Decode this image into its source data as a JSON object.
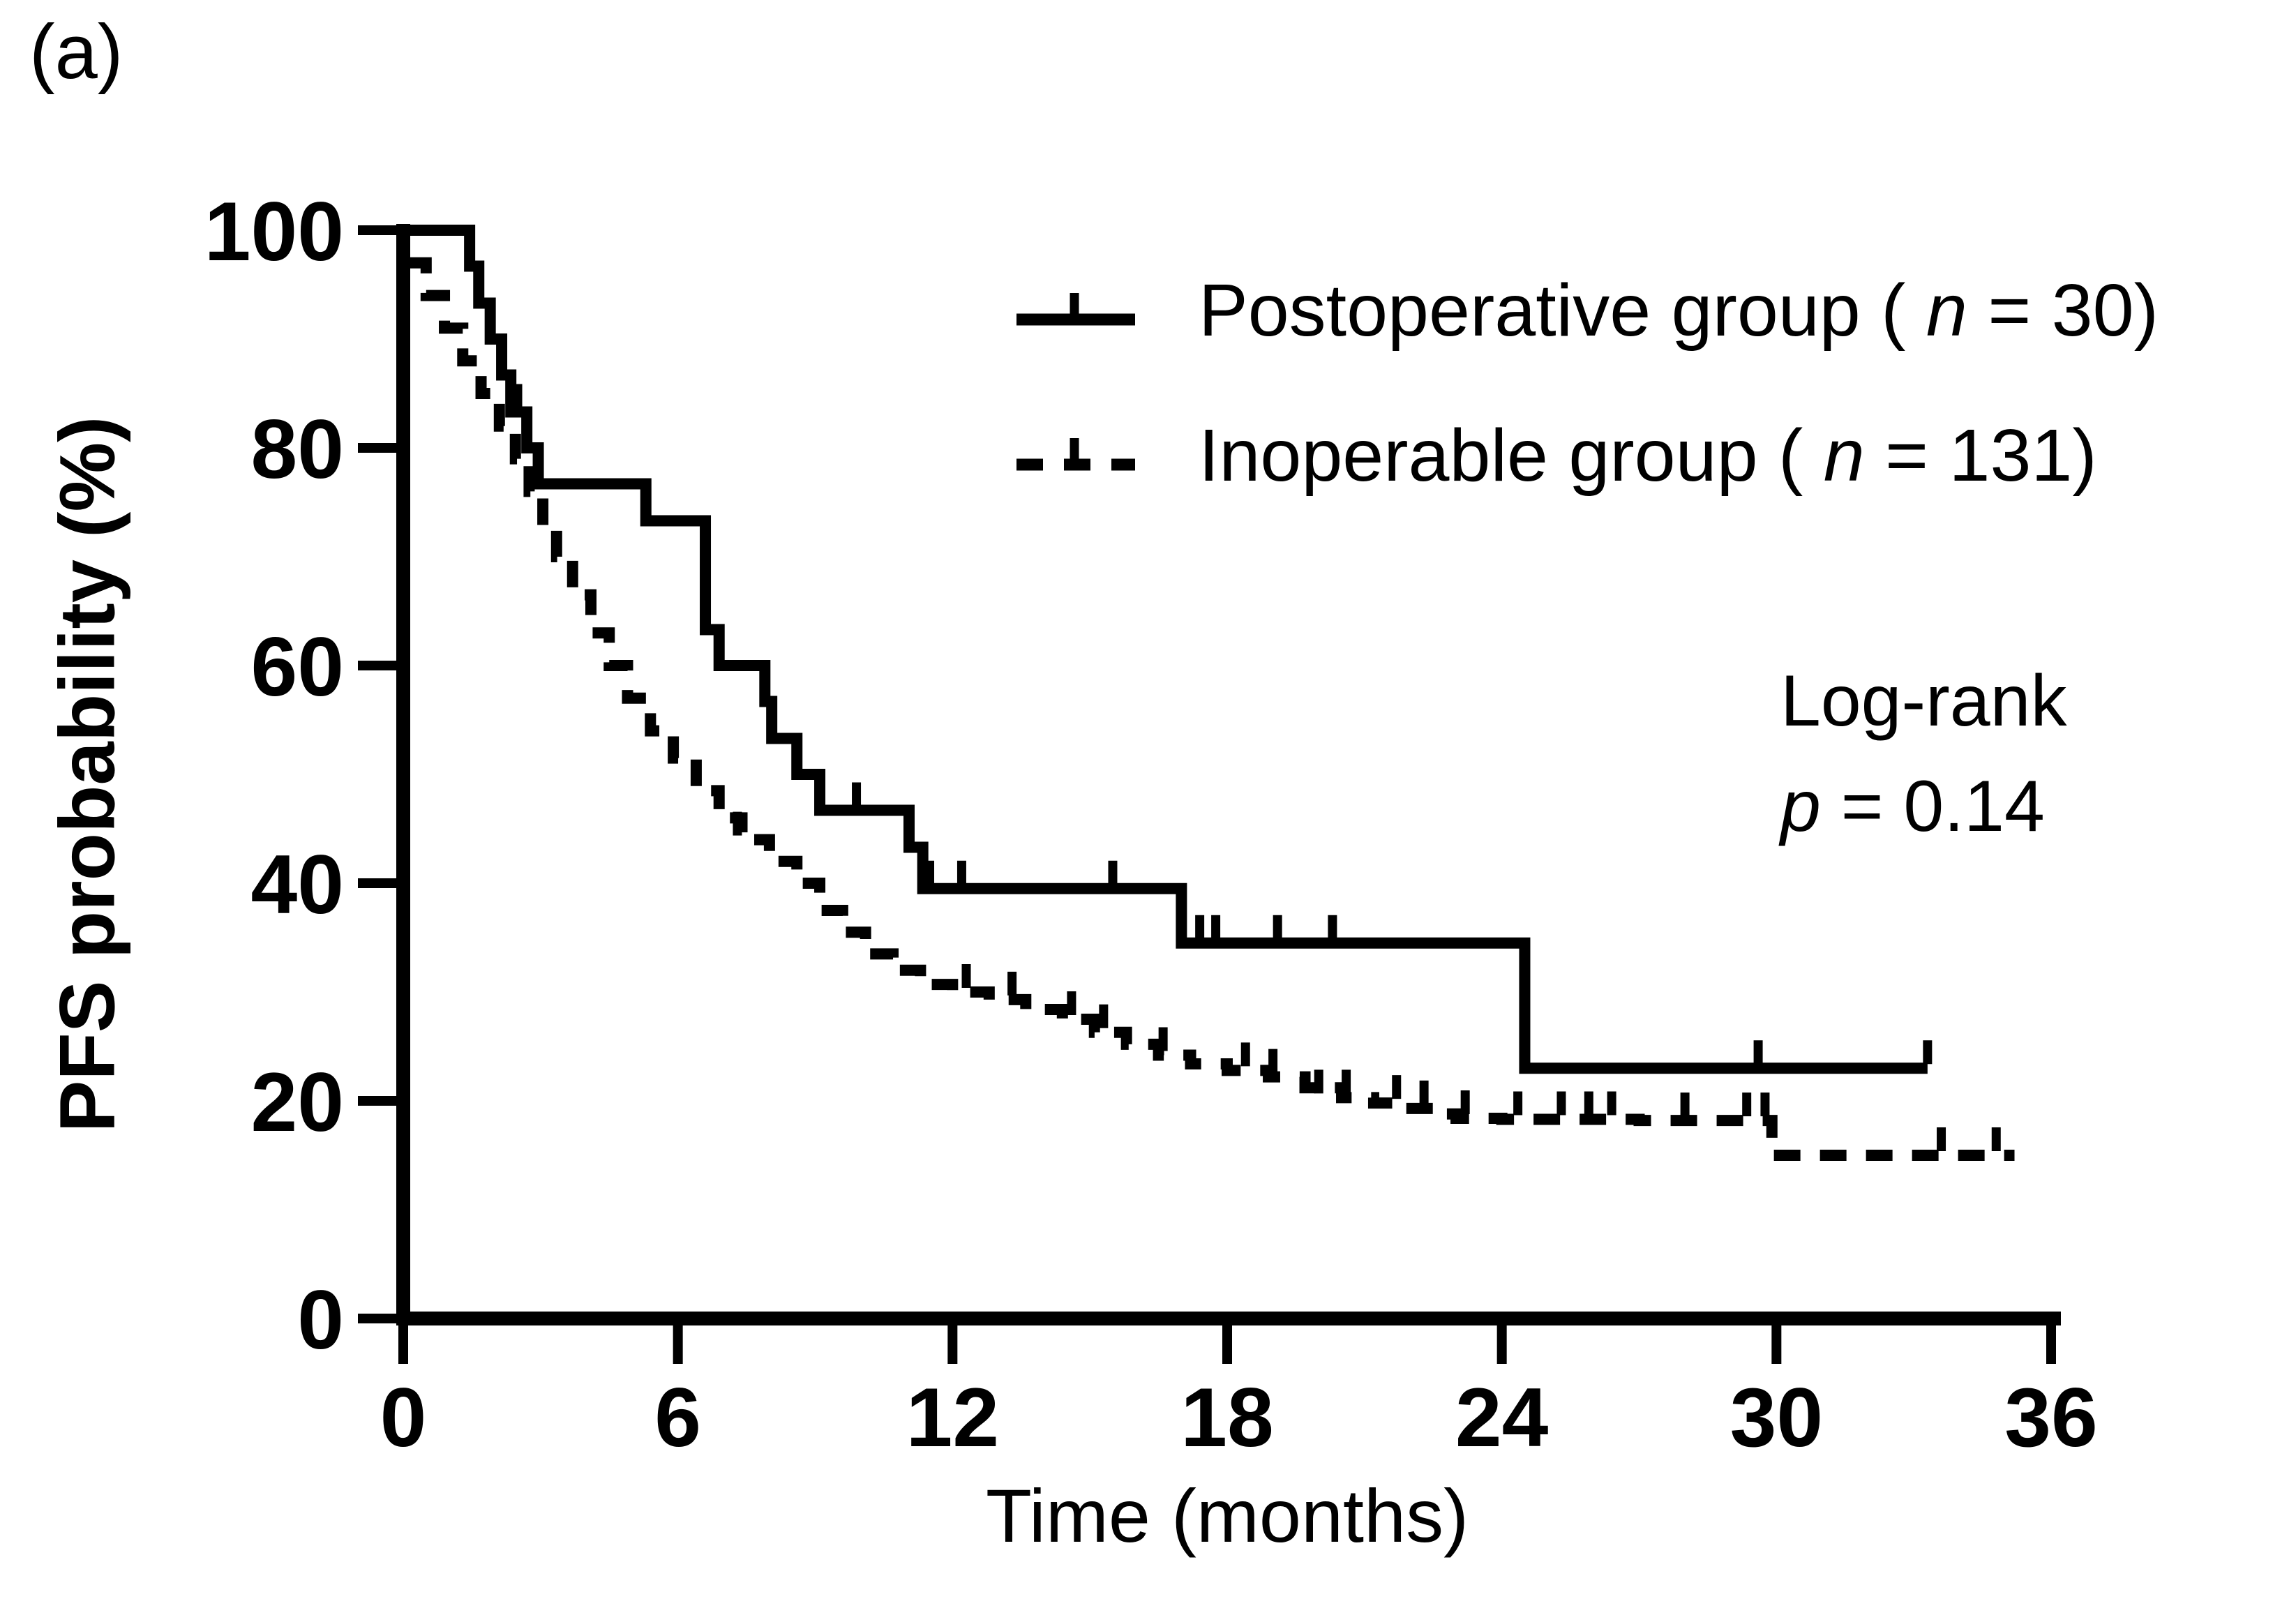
{
  "panel_label": "(a)",
  "chart_data": {
    "type": "line",
    "subtype": "kaplan-meier-step",
    "title": "",
    "xlabel": "Time (months)",
    "ylabel": "PFS probability (%)",
    "xlim": [
      0,
      36
    ],
    "ylim": [
      0,
      100
    ],
    "xticks": [
      0,
      6,
      12,
      18,
      24,
      30,
      36
    ],
    "yticks": [
      0,
      20,
      40,
      60,
      80,
      100
    ],
    "grid": false,
    "legend_position": "upper-right-inside",
    "line_color": "#000000",
    "annotation": {
      "line1": "Log-rank",
      "stat_symbol": "p",
      "stat_rest": " = 0.14"
    },
    "series": [
      {
        "label_pre": "Postoperative group ( ",
        "label_symbol": "n",
        "label_post": " = 30)",
        "n": 30,
        "line_style": "solid",
        "color": "#000000",
        "steps_time_pct": [
          [
            0,
            100
          ],
          [
            1.45,
            96.7
          ],
          [
            1.65,
            93.3
          ],
          [
            1.9,
            90
          ],
          [
            2.15,
            86.7
          ],
          [
            2.35,
            83.3
          ],
          [
            2.7,
            80
          ],
          [
            2.95,
            76.7
          ],
          [
            5.3,
            73.3
          ],
          [
            6.6,
            63.3
          ],
          [
            6.9,
            60
          ],
          [
            7.9,
            56.7
          ],
          [
            8.05,
            53.3
          ],
          [
            8.6,
            50
          ],
          [
            9.1,
            46.7
          ],
          [
            11.05,
            43.3
          ],
          [
            11.35,
            39.5
          ],
          [
            17.0,
            34.5
          ],
          [
            24.5,
            23
          ]
        ],
        "end_time": 33.3,
        "censor_marks": [
          [
            2.5,
            83.3
          ],
          [
            9.9,
            46.7
          ],
          [
            11.5,
            39.5
          ],
          [
            12.2,
            39.5
          ],
          [
            15.5,
            39.5
          ],
          [
            17.4,
            34.5
          ],
          [
            17.75,
            34.5
          ],
          [
            19.1,
            34.5
          ],
          [
            20.3,
            34.5
          ],
          [
            29.6,
            23
          ],
          [
            33.3,
            23
          ]
        ]
      },
      {
        "label_pre": "Inoperable group ( ",
        "label_symbol": "n",
        "label_post": " = 131)",
        "n": 131,
        "line_style": "dashed",
        "color": "#000000",
        "steps_time_pct": [
          [
            0.15,
            97
          ],
          [
            0.5,
            94
          ],
          [
            0.9,
            91
          ],
          [
            1.3,
            88
          ],
          [
            1.7,
            85
          ],
          [
            2.1,
            82
          ],
          [
            2.45,
            79
          ],
          [
            2.75,
            76
          ],
          [
            3.05,
            72.5
          ],
          [
            3.35,
            70
          ],
          [
            3.7,
            66.5
          ],
          [
            4.1,
            63
          ],
          [
            4.5,
            60
          ],
          [
            4.9,
            57
          ],
          [
            5.4,
            54
          ],
          [
            5.9,
            51.5
          ],
          [
            6.4,
            48.5
          ],
          [
            6.9,
            46
          ],
          [
            7.4,
            44
          ],
          [
            8.0,
            42
          ],
          [
            8.6,
            40
          ],
          [
            9.1,
            37.5
          ],
          [
            9.6,
            35.5
          ],
          [
            10.1,
            33.5
          ],
          [
            10.7,
            32
          ],
          [
            11.3,
            30.7
          ],
          [
            12.0,
            30
          ],
          [
            12.8,
            29.3
          ],
          [
            13.6,
            28.4
          ],
          [
            14.4,
            27.5
          ],
          [
            15.1,
            26.3
          ],
          [
            15.8,
            25.2
          ],
          [
            16.5,
            24.2
          ],
          [
            17.2,
            23.4
          ],
          [
            18.0,
            22.8
          ],
          [
            18.9,
            22.2
          ],
          [
            19.7,
            21.2
          ],
          [
            20.5,
            20.3
          ],
          [
            21.2,
            19.8
          ],
          [
            21.8,
            19.3
          ],
          [
            22.5,
            18.8
          ],
          [
            23.0,
            18.4
          ],
          [
            24.0,
            18.3
          ],
          [
            27.0,
            18.2
          ],
          [
            29.9,
            15.0
          ]
        ],
        "end_time": 35.2,
        "censor_marks": [
          [
            7.3,
            44
          ],
          [
            12.3,
            30
          ],
          [
            13.3,
            29.3
          ],
          [
            14.6,
            27.5
          ],
          [
            15.3,
            26.3
          ],
          [
            16.6,
            24.2
          ],
          [
            18.4,
            22.8
          ],
          [
            19.0,
            22.2
          ],
          [
            20.0,
            20.3
          ],
          [
            20.6,
            20.3
          ],
          [
            21.7,
            19.8
          ],
          [
            22.3,
            19.3
          ],
          [
            23.2,
            18.4
          ],
          [
            24.35,
            18.3
          ],
          [
            25.3,
            18.3
          ],
          [
            25.9,
            18.3
          ],
          [
            26.4,
            18.3
          ],
          [
            28.0,
            18.2
          ],
          [
            29.35,
            18.2
          ],
          [
            29.75,
            18.2
          ],
          [
            33.6,
            15
          ],
          [
            34.8,
            15
          ]
        ]
      }
    ]
  }
}
